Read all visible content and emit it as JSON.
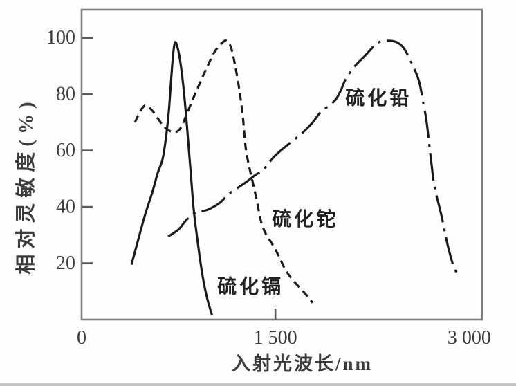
{
  "chart_data": {
    "type": "line",
    "title": "",
    "xlabel": "入射光波长/nm",
    "ylabel": "相对灵敏度(%)",
    "xlim": [
      0,
      3100
    ],
    "ylim": [
      0,
      110
    ],
    "grid": false,
    "legend": "inline-curve-labels",
    "x_ticks": [
      {
        "value": 0,
        "label": "0",
        "tick_mark": false
      },
      {
        "value": 1500,
        "label": "1 500",
        "tick_mark": true
      },
      {
        "value": 3000,
        "label": "3 000",
        "tick_mark": false
      }
    ],
    "y_ticks": [
      {
        "value": 20,
        "label": "20"
      },
      {
        "value": 40,
        "label": "40"
      },
      {
        "value": 60,
        "label": "60"
      },
      {
        "value": 80,
        "label": "80"
      },
      {
        "value": 100,
        "label": "100"
      }
    ],
    "series": [
      {
        "id": "cds",
        "name": "硫化镉",
        "line_style": "solid",
        "color": "#1b1b1b",
        "label": {
          "text": "硫化镉",
          "x": 1307,
          "y": 11.5
        },
        "points": [
          [
            386,
            19.5
          ],
          [
            439,
            28.5
          ],
          [
            493,
            37.5
          ],
          [
            546,
            45
          ],
          [
            589,
            52
          ],
          [
            627,
            57
          ],
          [
            654,
            65
          ],
          [
            675,
            74
          ],
          [
            691,
            84
          ],
          [
            705,
            92.5
          ],
          [
            716,
            97
          ],
          [
            725,
            98.5
          ],
          [
            737,
            97.5
          ],
          [
            755,
            94
          ],
          [
            777,
            87
          ],
          [
            798,
            78
          ],
          [
            820,
            66
          ],
          [
            845,
            52
          ],
          [
            868,
            39
          ],
          [
            900,
            27
          ],
          [
            940,
            14.5
          ],
          [
            975,
            7
          ],
          [
            1010,
            1.5
          ]
        ]
      },
      {
        "id": "tl2s",
        "name": "硫化铊",
        "line_style": "dashed",
        "color": "#1b1b1b",
        "label": {
          "text": "硫化铊",
          "x": 1730,
          "y": 35.5
        },
        "points": [
          [
            413,
            70
          ],
          [
            455,
            74
          ],
          [
            493,
            76
          ],
          [
            541,
            74.5
          ],
          [
            589,
            71.5
          ],
          [
            637,
            68.5
          ],
          [
            680,
            67
          ],
          [
            723,
            66.5
          ],
          [
            766,
            68
          ],
          [
            814,
            73
          ],
          [
            868,
            79
          ],
          [
            921,
            84.5
          ],
          [
            975,
            90
          ],
          [
            1029,
            95
          ],
          [
            1082,
            98
          ],
          [
            1120,
            99
          ],
          [
            1157,
            96.5
          ],
          [
            1189,
            90
          ],
          [
            1221,
            81.5
          ],
          [
            1248,
            72
          ],
          [
            1270,
            61
          ],
          [
            1296,
            54.5
          ],
          [
            1323,
            49
          ],
          [
            1355,
            42.5
          ],
          [
            1388,
            35
          ],
          [
            1430,
            30
          ],
          [
            1473,
            27
          ],
          [
            1527,
            22.5
          ],
          [
            1580,
            17.5
          ],
          [
            1645,
            13.5
          ],
          [
            1725,
            9.5
          ],
          [
            1789,
            6
          ]
        ]
      },
      {
        "id": "pbs",
        "name": "硫化铅",
        "line_style": "dashdot",
        "color": "#1b1b1b",
        "label": {
          "text": "硫化铅",
          "x": 2298,
          "y": 78.5
        },
        "points": [
          [
            670,
            29.5
          ],
          [
            750,
            32
          ],
          [
            814,
            35.5
          ],
          [
            884,
            38
          ],
          [
            975,
            39
          ],
          [
            1071,
            41.5
          ],
          [
            1136,
            44.5
          ],
          [
            1216,
            47
          ],
          [
            1280,
            49
          ],
          [
            1350,
            51.5
          ],
          [
            1403,
            53
          ],
          [
            1494,
            58
          ],
          [
            1607,
            62.5
          ],
          [
            1703,
            66
          ],
          [
            1789,
            70
          ],
          [
            1848,
            73.5
          ],
          [
            1955,
            77.5
          ],
          [
            2003,
            81
          ],
          [
            2046,
            85.5
          ],
          [
            2116,
            90
          ],
          [
            2191,
            93.5
          ],
          [
            2261,
            97
          ],
          [
            2303,
            98.5
          ],
          [
            2368,
            99
          ],
          [
            2437,
            98.5
          ],
          [
            2491,
            96.5
          ],
          [
            2544,
            92
          ],
          [
            2609,
            85
          ],
          [
            2646,
            76.5
          ],
          [
            2668,
            71
          ],
          [
            2689,
            63
          ],
          [
            2710,
            54.5
          ],
          [
            2732,
            47
          ],
          [
            2780,
            38
          ],
          [
            2823,
            28.5
          ],
          [
            2850,
            23.5
          ],
          [
            2882,
            18.5
          ],
          [
            2914,
            16
          ]
        ]
      }
    ]
  },
  "colors": {
    "curve": "#1b1b1b",
    "frame": "#7d7d7d",
    "tick": "#5a5a5a",
    "text": "#3c3c3c",
    "label_text": "#222222",
    "background": "#fefefe",
    "bottom_edge": "#c9c9c9"
  }
}
